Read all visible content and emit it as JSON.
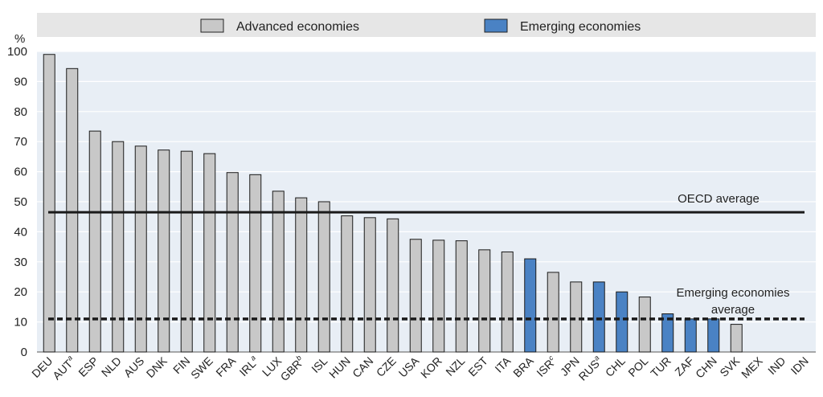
{
  "chart_data": {
    "type": "bar",
    "ylabel": "%",
    "ylim": [
      0,
      100
    ],
    "yticks": [
      0,
      10,
      20,
      30,
      40,
      50,
      60,
      70,
      80,
      90,
      100
    ],
    "grid": "horizontal",
    "legend_position": "top",
    "series": [
      {
        "name": "Advanced economies",
        "color": "#c8c8c8"
      },
      {
        "name": "Emerging economies",
        "color": "#4a82c4"
      }
    ],
    "categories": [
      "DEU",
      "AUT",
      "ESP",
      "NLD",
      "AUS",
      "DNK",
      "FIN",
      "SWE",
      "FRA",
      "IRL",
      "LUX",
      "GBR",
      "ISL",
      "HUN",
      "CAN",
      "CZE",
      "USA",
      "KOR",
      "NZL",
      "EST",
      "ITA",
      "BRA",
      "ISR",
      "JPN",
      "RUS",
      "CHL",
      "POL",
      "TUR",
      "ZAF",
      "CHN",
      "SVK",
      "MEX",
      "IND",
      "IDN"
    ],
    "superscripts": [
      "",
      "a",
      "",
      "",
      "",
      "",
      "",
      "",
      "",
      "a",
      "",
      "b",
      "",
      "",
      "",
      "",
      "",
      "",
      "",
      "",
      "",
      "",
      "c",
      "",
      "a",
      "",
      "",
      "",
      "",
      "",
      "",
      "",
      "",
      ""
    ],
    "values": [
      99,
      94.3,
      73.5,
      70,
      68.5,
      67.2,
      66.8,
      66,
      59.7,
      59,
      53.5,
      51.3,
      50,
      45.3,
      44.7,
      44.3,
      37.5,
      37.2,
      37,
      34,
      33.3,
      31,
      26.5,
      23.3,
      23.3,
      20,
      18.3,
      12.7,
      11,
      11,
      9.2,
      0,
      0,
      0
    ],
    "groups": [
      "Advanced economies",
      "Advanced economies",
      "Advanced economies",
      "Advanced economies",
      "Advanced economies",
      "Advanced economies",
      "Advanced economies",
      "Advanced economies",
      "Advanced economies",
      "Advanced economies",
      "Advanced economies",
      "Advanced economies",
      "Advanced economies",
      "Advanced economies",
      "Advanced economies",
      "Advanced economies",
      "Advanced economies",
      "Advanced economies",
      "Advanced economies",
      "Advanced economies",
      "Advanced economies",
      "Emerging economies",
      "Advanced economies",
      "Advanced economies",
      "Emerging economies",
      "Emerging economies",
      "Advanced economies",
      "Emerging economies",
      "Emerging economies",
      "Emerging economies",
      "Advanced economies",
      "Advanced economies",
      "Emerging economies",
      "Emerging economies"
    ],
    "reference_lines": [
      {
        "label": "OECD average",
        "value": 46.5,
        "style": "solid"
      },
      {
        "label_lines": [
          "Emerging economies",
          "average"
        ],
        "value": 11,
        "style": "dashed"
      }
    ]
  }
}
